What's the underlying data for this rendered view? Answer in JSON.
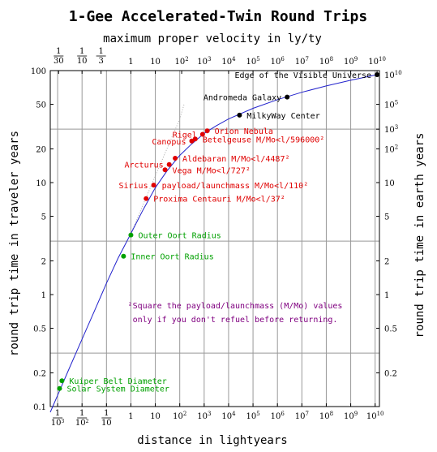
{
  "chart_data": {
    "type": "scatter",
    "title": "1-Gee Accelerated-Twin Round Trips",
    "subtitle": "maximum proper velocity in ly/ty",
    "xlabel": "distance in lightyears",
    "ylabel_left": "round trip time in traveler years",
    "ylabel_right": "round trip time in earth years",
    "x_scale": "log",
    "y_scale": "log",
    "xlim": [
      0.0005,
      15000000000
    ],
    "ylim": [
      0.1,
      100
    ],
    "grid": true,
    "curve_color": "#2222cc",
    "guide_color": "#aaaaaa",
    "bottom_ticks": [
      {
        "x": 0.001,
        "num": "1",
        "den": "10",
        "exp": "3"
      },
      {
        "x": 0.01,
        "num": "1",
        "den": "10",
        "exp": "2"
      },
      {
        "x": 0.1,
        "num": "1",
        "den": "10",
        "exp": ""
      },
      {
        "x": 1,
        "label": "1"
      },
      {
        "x": 10,
        "label": "10"
      },
      {
        "x": 100,
        "label": "10",
        "exp": "2"
      },
      {
        "x": 1000,
        "label": "10",
        "exp": "3"
      },
      {
        "x": 10000,
        "label": "10",
        "exp": "4"
      },
      {
        "x": 100000,
        "label": "10",
        "exp": "5"
      },
      {
        "x": 1000000,
        "label": "10",
        "exp": "6"
      },
      {
        "x": 10000000,
        "label": "10",
        "exp": "7"
      },
      {
        "x": 100000000,
        "label": "10",
        "exp": "8"
      },
      {
        "x": 1000000000,
        "label": "10",
        "exp": "9"
      },
      {
        "x": 10000000000,
        "label": "10",
        "exp": "10"
      }
    ],
    "top_ticks": [
      {
        "x": 0.0011,
        "num": "1",
        "den": "30"
      },
      {
        "x": 0.01,
        "num": "1",
        "den": "10"
      },
      {
        "x": 0.06,
        "num": "1",
        "den": "3"
      },
      {
        "x": 1,
        "label": "1"
      },
      {
        "x": 10,
        "label": "10"
      },
      {
        "x": 120,
        "label": "10",
        "exp": "2"
      },
      {
        "x": 1000,
        "label": "10",
        "exp": "3"
      },
      {
        "x": 10000,
        "label": "10",
        "exp": "4"
      },
      {
        "x": 100000,
        "label": "10",
        "exp": "5"
      },
      {
        "x": 1000000,
        "label": "10",
        "exp": "6"
      },
      {
        "x": 10000000,
        "label": "10",
        "exp": "7"
      },
      {
        "x": 100000000,
        "label": "10",
        "exp": "8"
      },
      {
        "x": 1000000000,
        "label": "10",
        "exp": "9"
      },
      {
        "x": 12000000000,
        "label": "10",
        "exp": "10"
      }
    ],
    "left_ticks": [
      {
        "y": 0.1,
        "label": "0.1"
      },
      {
        "y": 0.2,
        "label": "0.2"
      },
      {
        "y": 0.5,
        "label": "0.5"
      },
      {
        "y": 1,
        "label": "1"
      },
      {
        "y": 2,
        "label": "2"
      },
      {
        "y": 5,
        "label": "5"
      },
      {
        "y": 10,
        "label": "10"
      },
      {
        "y": 20,
        "label": "20"
      },
      {
        "y": 50,
        "label": "50"
      },
      {
        "y": 100,
        "label": "100"
      }
    ],
    "right_ticks": [
      {
        "y": 0.2,
        "label": "0.2"
      },
      {
        "y": 0.5,
        "label": "0.5"
      },
      {
        "y": 1,
        "label": "1"
      },
      {
        "y": 2,
        "label": "2"
      },
      {
        "y": 5,
        "label": "5"
      },
      {
        "y": 10,
        "label": "10"
      },
      {
        "y": 20,
        "label": "10",
        "exp": "2"
      },
      {
        "y": 30,
        "label": "10",
        "exp": "3"
      },
      {
        "y": 50,
        "label": "10",
        "exp": "5"
      },
      {
        "y": 92,
        "label": "10",
        "exp": "10"
      }
    ],
    "grid_x": [
      0.001,
      0.01,
      0.1,
      1,
      10,
      100,
      1000,
      10000,
      100000,
      1000000,
      10000000,
      100000000,
      1000000000,
      10000000000
    ],
    "grid_y": [
      0.3,
      3,
      30
    ],
    "points": [
      {
        "name": "Solar System Diameter",
        "x": 0.0012,
        "y": 0.145,
        "color": "#00a000",
        "label_side": "right"
      },
      {
        "name": "Kuiper Belt Diameter",
        "x": 0.0015,
        "y": 0.17,
        "color": "#00a000",
        "label_side": "right"
      },
      {
        "name": "Inner Oort Radius",
        "x": 0.5,
        "y": 2.2,
        "color": "#00a000",
        "label_side": "right"
      },
      {
        "name": "Outer Oort Radius",
        "x": 1,
        "y": 3.4,
        "color": "#00a000",
        "label_side": "right"
      },
      {
        "name": "Proxima Centauri M/Mo<l/37²",
        "x": 4.2,
        "y": 7.2,
        "color": "#e00000",
        "label_side": "right"
      },
      {
        "name": "Sirius",
        "x": 8.6,
        "y": 9.5,
        "color": "#e00000",
        "label_side": "left"
      },
      {
        "name": "payload/launchmass M/Mo<l/110²",
        "x": 8.6,
        "y": 9.5,
        "color": "#e00000",
        "label_side": "right",
        "no_marker": true
      },
      {
        "name": "Vega M/Mo<l/727²",
        "x": 25,
        "y": 13,
        "color": "#e00000",
        "label_side": "right"
      },
      {
        "name": "Arcturus",
        "x": 37,
        "y": 14.5,
        "color": "#e00000",
        "label_side": "left"
      },
      {
        "name": "Aldebaran M/Mo<l/4487²",
        "x": 65,
        "y": 16.5,
        "color": "#e00000",
        "label_side": "right"
      },
      {
        "name": "Canopus",
        "x": 310,
        "y": 23.5,
        "color": "#e00000",
        "label_side": "left"
      },
      {
        "name": "Betelgeuse M/Mo<l/596000²",
        "x": 430,
        "y": 24.5,
        "color": "#e00000",
        "label_side": "right"
      },
      {
        "name": "Rigel",
        "x": 860,
        "y": 27,
        "color": "#e00000",
        "label_side": "left"
      },
      {
        "name": "Orion Nebula",
        "x": 1340,
        "y": 29,
        "color": "#e00000",
        "label_side": "right"
      },
      {
        "name": "MilkyWay Center",
        "x": 28000,
        "y": 40,
        "color": "#000000",
        "label_side": "right"
      },
      {
        "name": "Andromeda Galaxy",
        "x": 2500000,
        "y": 58,
        "color": "#000000",
        "label_side": "left"
      },
      {
        "name": "Edge of the Visible Universe",
        "x": 12000000000,
        "y": 92,
        "color": "#000000",
        "label_side": "left"
      }
    ],
    "curve": [
      [
        0.0005,
        0.089
      ],
      [
        0.001,
        0.126
      ],
      [
        0.003,
        0.219
      ],
      [
        0.01,
        0.4
      ],
      [
        0.03,
        0.69
      ],
      [
        0.1,
        1.26
      ],
      [
        0.3,
        2.12
      ],
      [
        1,
        3.5
      ],
      [
        3,
        5.6
      ],
      [
        10,
        9.0
      ],
      [
        30,
        12.7
      ],
      [
        100,
        17.5
      ],
      [
        300,
        22.0
      ],
      [
        1000,
        27.5
      ],
      [
        3000,
        32.0
      ],
      [
        10000,
        37.0
      ],
      [
        100000,
        46.0
      ],
      [
        1000000,
        55.0
      ],
      [
        10000000,
        64.0
      ],
      [
        100000000,
        73.0
      ],
      [
        1000000000,
        82.0
      ],
      [
        12000000000,
        92.0
      ]
    ],
    "guide": [
      [
        1,
        3.5
      ],
      [
        10,
        11.5
      ],
      [
        100,
        37.0
      ],
      [
        150,
        50
      ]
    ],
    "footnote_line1": "²Square the payload/launchmass (M/Mo) values",
    "footnote_line2": "only if you don't refuel before returning.",
    "footnote_color": "#800080"
  }
}
